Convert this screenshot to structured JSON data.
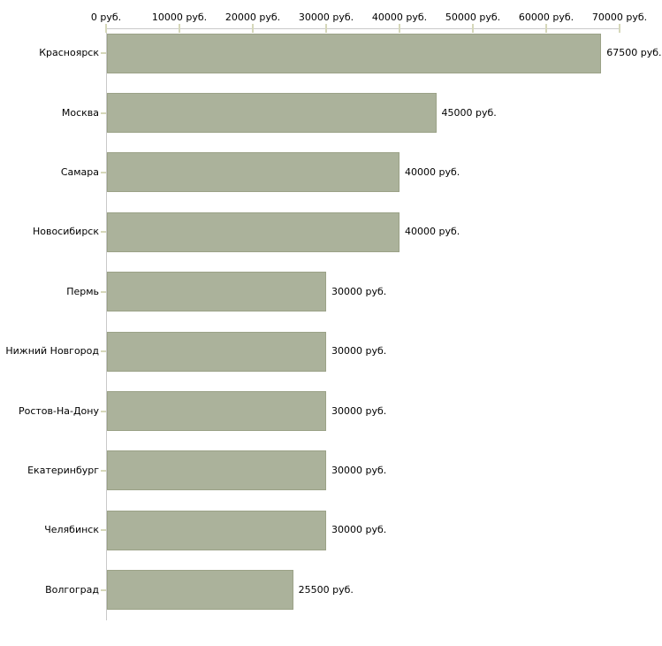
{
  "chart_data": {
    "type": "bar",
    "orientation": "horizontal",
    "title": "",
    "xlabel": "",
    "ylabel": "",
    "unit": "руб.",
    "xlim": [
      0,
      70000
    ],
    "grid": false,
    "legend": false,
    "categories": [
      "Красноярск",
      "Москва",
      "Самара",
      "Новосибирск",
      "Пермь",
      "Нижний Новгород",
      "Ростов-На-Дону",
      "Екатеринбург",
      "Челябинск",
      "Волгоград"
    ],
    "values": [
      67500,
      45000,
      40000,
      40000,
      30000,
      30000,
      30000,
      30000,
      30000,
      25500
    ],
    "value_labels": [
      "67500 руб.",
      "45000 руб.",
      "40000 руб.",
      "40000 руб.",
      "30000 руб.",
      "30000 руб.",
      "30000 руб.",
      "30000 руб.",
      "30000 руб.",
      "25500 руб."
    ],
    "x_ticks": [
      {
        "value": 0,
        "label": "0 руб."
      },
      {
        "value": 10000,
        "label": "10000 руб."
      },
      {
        "value": 20000,
        "label": "20000 руб."
      },
      {
        "value": 30000,
        "label": "30000 руб."
      },
      {
        "value": 40000,
        "label": "40000 руб."
      },
      {
        "value": 50000,
        "label": "50000 руб."
      },
      {
        "value": 60000,
        "label": "60000 руб."
      },
      {
        "value": 70000,
        "label": "70000 руб."
      }
    ],
    "colors": {
      "bar_fill": "#abb29b",
      "bar_border": "#9ba287",
      "axis_line": "#c9c9c9",
      "tick_mark": "#d6d8ba",
      "text": "#000000",
      "background": "#ffffff"
    }
  }
}
